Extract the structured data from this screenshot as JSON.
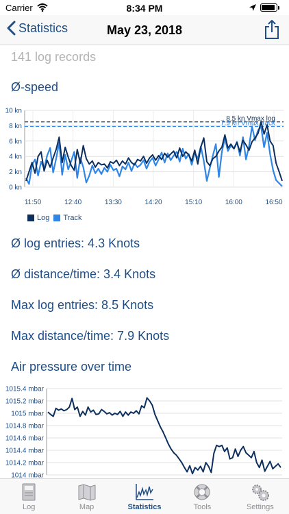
{
  "status_bar": {
    "carrier": "Carrier",
    "time": "8:34 PM",
    "battery_level": 0.9
  },
  "nav": {
    "back_label": "Statistics",
    "title": "May 23, 2018"
  },
  "log_records": "141 log records",
  "speed_title": "Ø-speed",
  "stats": {
    "avg_log": "Ø log entries: 4.3 Knots",
    "avg_distance": "Ø distance/time: 3.4 Knots",
    "max_log": "Max log entries: 8.5 Knots",
    "max_distance": "Max distance/time: 7.9 Knots"
  },
  "pressure_title": "Air pressure over time",
  "legend": {
    "log": "Log",
    "track": "Track"
  },
  "colors": {
    "log": "#0d2f5e",
    "track": "#2f86e6",
    "accent": "#1f4e86"
  },
  "tabs": [
    {
      "label": "Log",
      "icon": "logbook-icon",
      "active": false
    },
    {
      "label": "Map",
      "icon": "map-icon",
      "active": false
    },
    {
      "label": "Statistics",
      "icon": "chart-icon",
      "active": true
    },
    {
      "label": "Tools",
      "icon": "lifebuoy-icon",
      "active": false
    },
    {
      "label": "Settings",
      "icon": "gears-icon",
      "active": false
    }
  ],
  "chart_data": [
    {
      "type": "line",
      "y_unit": "kn",
      "ylim": [
        0,
        10
      ],
      "y_ticks": [
        "0 kn",
        "2 kn",
        "4 kn",
        "6 kn",
        "8 kn",
        "10 kn"
      ],
      "x_ticks": [
        "11:50",
        "12:40",
        "13:30",
        "14:20",
        "15:10",
        "16:00",
        "16:50"
      ],
      "grid": true,
      "legend_position": "bottom-left",
      "reference_lines": [
        {
          "label": "8.5 kn Vmax log",
          "value": 8.5,
          "series": "Log"
        },
        {
          "label": "7.9 kn Vmax track",
          "value": 7.9,
          "series": "Track"
        }
      ],
      "series": [
        {
          "name": "Log",
          "values": [
            0.8,
            2.0,
            3.2,
            1.8,
            4.0,
            4.6,
            2.1,
            3.5,
            2.6,
            3.8,
            4.9,
            6.5,
            3.2,
            5.2,
            3.9,
            2.8,
            2.2,
            4.9,
            3.1,
            5.4,
            3.7,
            3.0,
            3.4,
            2.6,
            3.2,
            2.9,
            3.0,
            2.5,
            3.3,
            3.1,
            3.5,
            2.8,
            3.4,
            3.0,
            3.8,
            3.2,
            2.9,
            3.6,
            3.4,
            4.0,
            3.1,
            3.8,
            4.2,
            3.5,
            4.1,
            3.6,
            4.4,
            3.9,
            4.3,
            4.7,
            3.8,
            5.1,
            4.0,
            4.6,
            4.2,
            3.4,
            4.8,
            3.0,
            5.2,
            6.4,
            3.3,
            2.8,
            3.7,
            4.0,
            4.7,
            5.2,
            6.8,
            5.1,
            5.6,
            5.0,
            5.8,
            4.6,
            6.1,
            5.5,
            4.8,
            5.9,
            6.4,
            7.0,
            8.5,
            6.9,
            8.1,
            6.0,
            5.4,
            3.1,
            2.0,
            0.8
          ]
        },
        {
          "name": "Track",
          "values": [
            1.2,
            0.4,
            2.9,
            3.6,
            1.5,
            3.3,
            2.4,
            4.1,
            5.1,
            1.9,
            3.7,
            5.8,
            1.6,
            4.2,
            2.3,
            3.4,
            4.6,
            1.2,
            3.8,
            2.6,
            0.6,
            1.5,
            2.8,
            1.8,
            2.4,
            1.7,
            2.5,
            2.0,
            2.9,
            2.2,
            2.4,
            1.4,
            2.7,
            2.3,
            3.2,
            2.1,
            3.1,
            2.6,
            2.9,
            3.5,
            2.4,
            3.3,
            3.8,
            2.8,
            3.6,
            4.5,
            3.2,
            4.4,
            3.5,
            4.1,
            4.6,
            3.3,
            5.0,
            3.7,
            4.3,
            2.9,
            4.5,
            3.7,
            5.3,
            3.4,
            0.8,
            2.5,
            4.1,
            5.6,
            1.3,
            4.6,
            6.3,
            4.7,
            5.4,
            5.0,
            5.9,
            4.1,
            6.5,
            3.6,
            5.3,
            7.9,
            6.1,
            7.4,
            7.9,
            5.2,
            7.1,
            4.3,
            2.2,
            0.9,
            0.5,
            0.1
          ]
        }
      ]
    },
    {
      "type": "line",
      "title": "Air pressure over time",
      "y_unit": "mbar",
      "ylim": [
        1014.0,
        1015.4
      ],
      "y_ticks": [
        "1014 mbar",
        "1014.2 mbar",
        "1014.4 mbar",
        "1014.6 mbar",
        "1014.8 mbar",
        "1015 mbar",
        "1015.2 mbar",
        "1015.4 mbar"
      ],
      "grid": true,
      "series": [
        {
          "name": "",
          "values": [
            1015.02,
            1014.98,
            1014.95,
            1015.08,
            1015.05,
            1015.07,
            1015.04,
            1015.06,
            1015.1,
            1015.24,
            1015.06,
            1015.1,
            1014.95,
            1015.03,
            1014.97,
            1015.1,
            1015.02,
            1015.05,
            1014.98,
            1014.99,
            1015.06,
            1015.03,
            1014.99,
            1015.01,
            1014.97,
            1015.0,
            1014.98,
            1015.03,
            1014.95,
            1015.02,
            1014.97,
            1015.02,
            1015.0,
            1015.04,
            1014.99,
            1015.12,
            1015.09,
            1015.25,
            1015.2,
            1015.13,
            1014.98,
            1014.88,
            1014.78,
            1014.7,
            1014.6,
            1014.5,
            1014.42,
            1014.36,
            1014.32,
            1014.26,
            1014.2,
            1014.12,
            1014.05,
            1014.15,
            1014.02,
            1014.12,
            1014.08,
            1014.14,
            1014.05,
            1014.2,
            1014.14,
            1014.04,
            1014.35,
            1014.48,
            1014.46,
            1014.48,
            1014.38,
            1014.44,
            1014.26,
            1014.28,
            1014.42,
            1014.3,
            1014.4,
            1014.46,
            1014.36,
            1014.32,
            1014.28,
            1014.38,
            1014.2,
            1014.12,
            1014.24,
            1014.06,
            1014.14,
            1014.22,
            1014.1,
            1014.14,
            1014.18,
            1014.12
          ]
        }
      ]
    }
  ]
}
